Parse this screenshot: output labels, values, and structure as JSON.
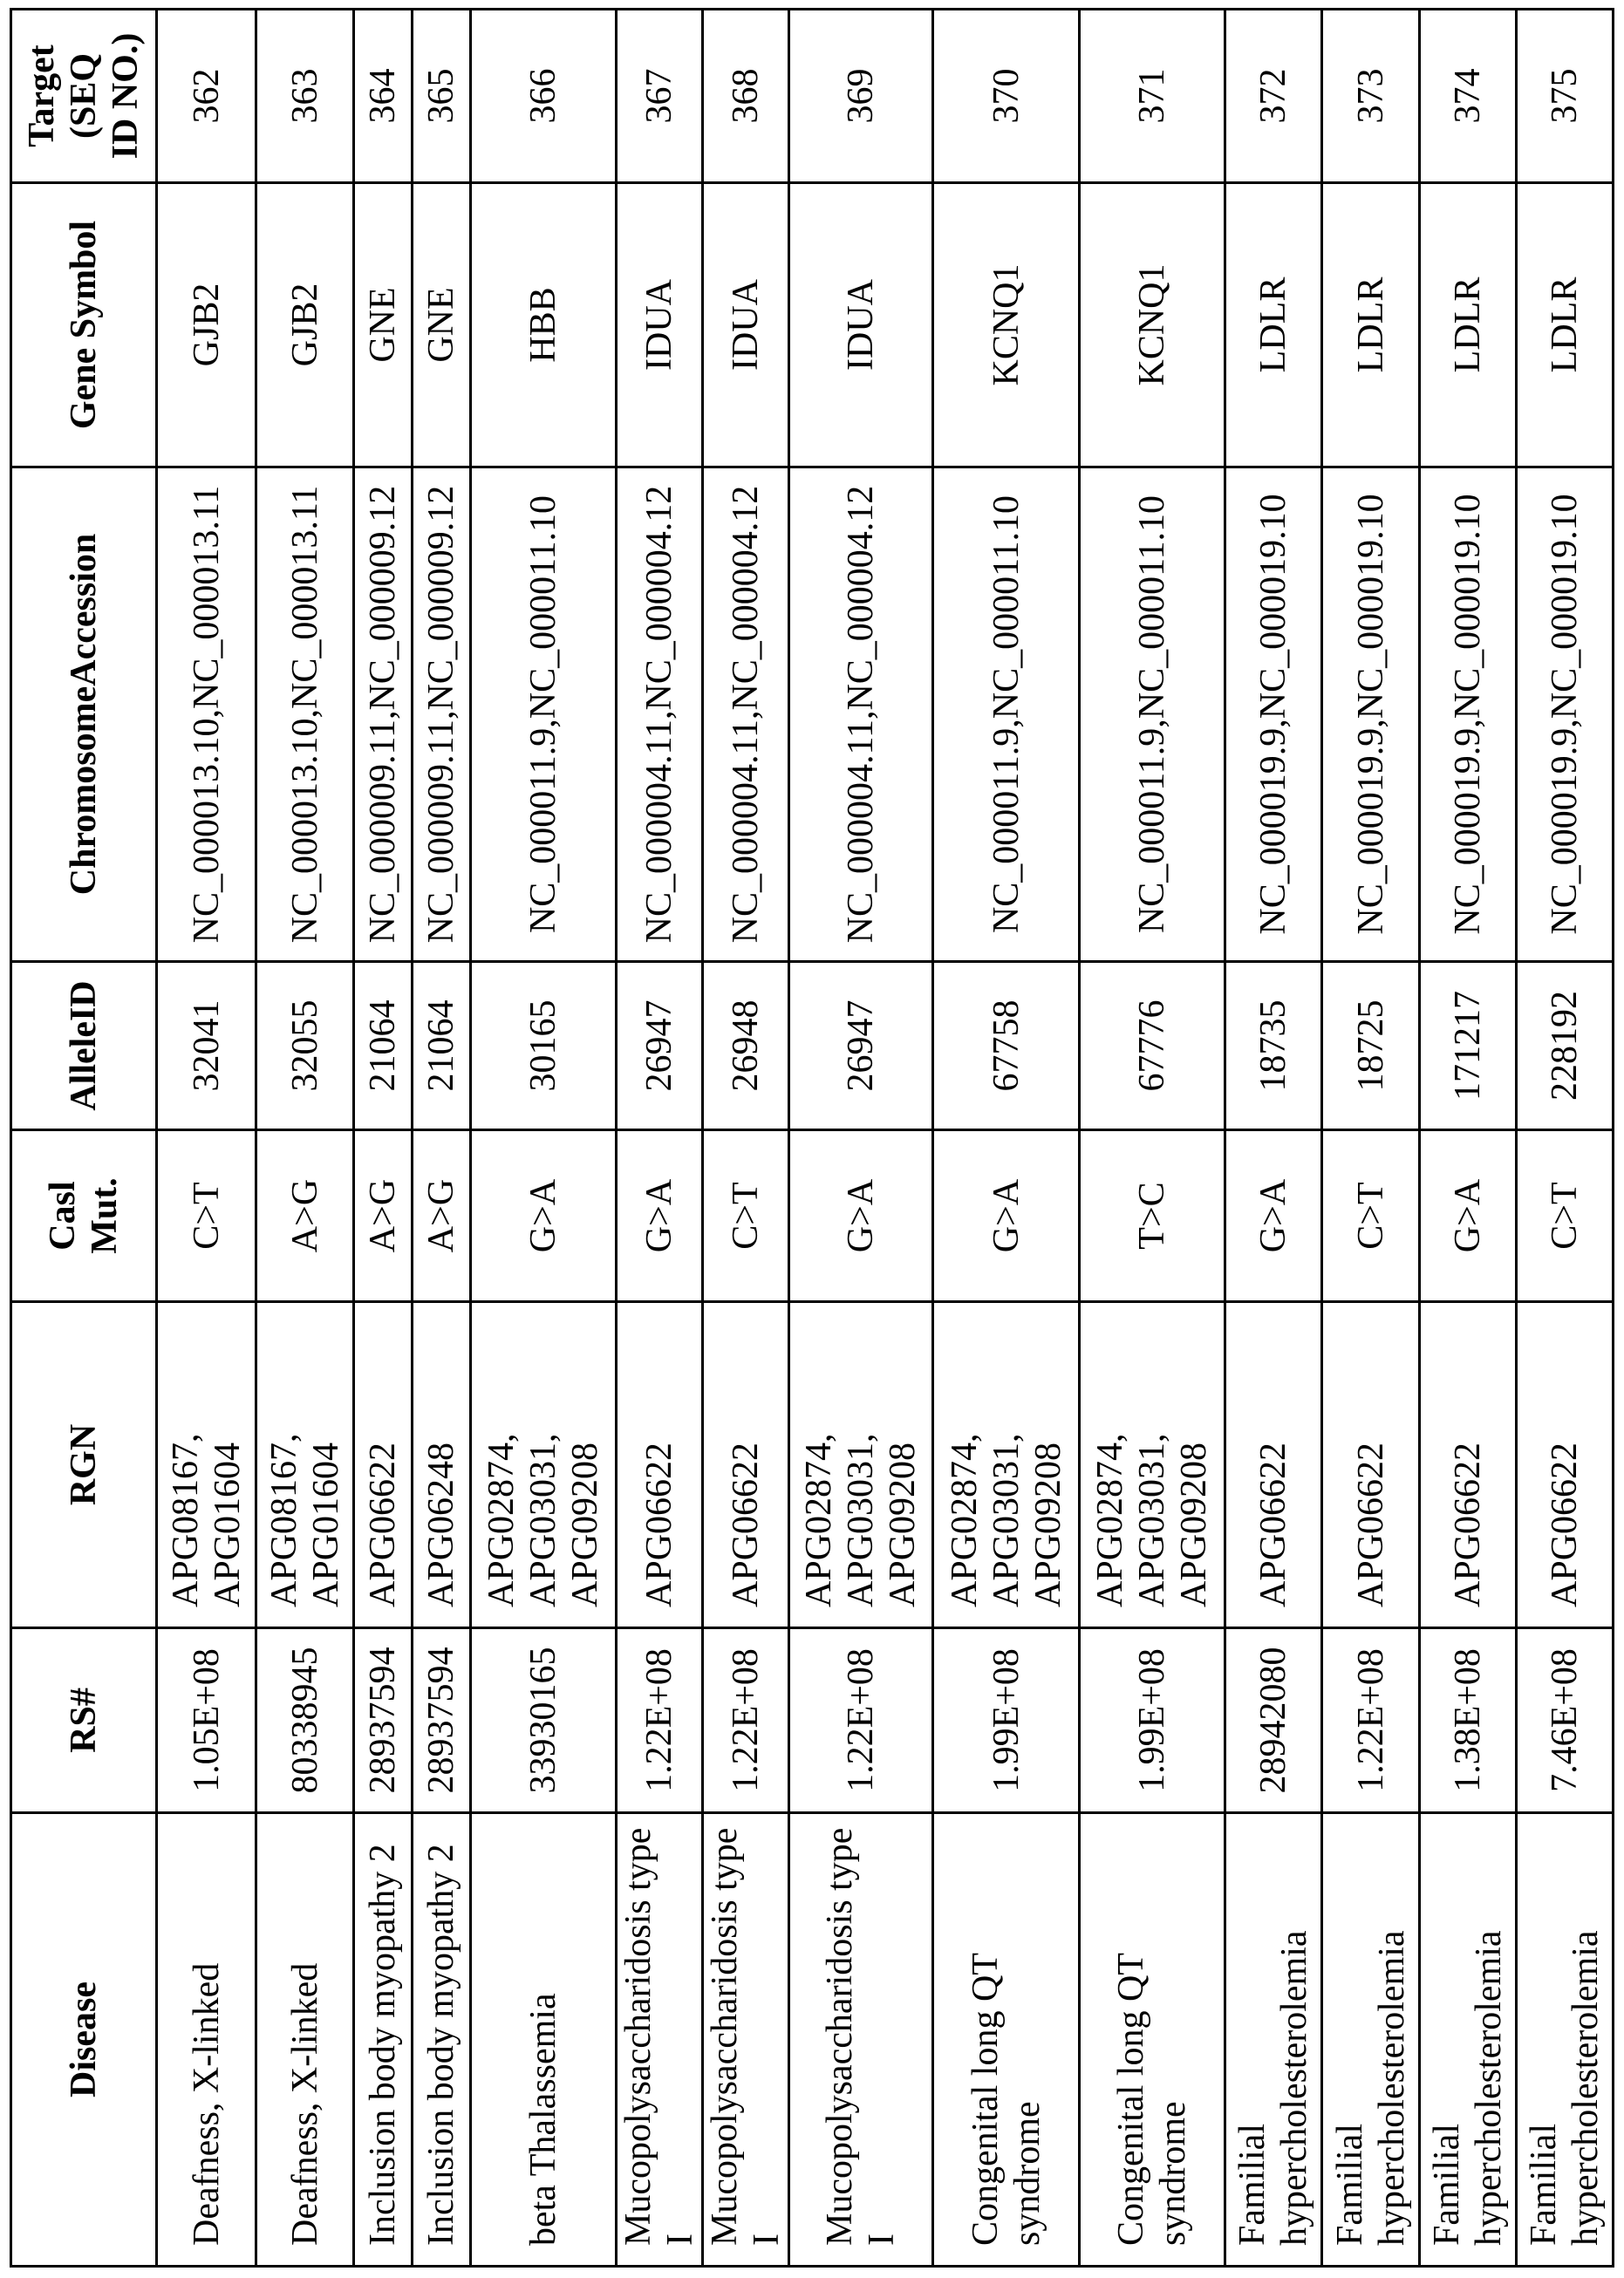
{
  "table": {
    "headers": [
      "Disease",
      "RS#",
      "RGN",
      "Casl Mut.",
      "AlleleID",
      "ChromosomeAccession",
      "Gene Symbol",
      "Target (SEQ ID NO.)"
    ],
    "rows": [
      [
        "Deafness, X-linked",
        "1.05E+08",
        "APG08167, APG01604",
        "C>T",
        "32041",
        "NC_000013.10,NC_000013.11",
        "GJB2",
        "362"
      ],
      [
        "Deafness, X-linked",
        "80338945",
        "APG08167, APG01604",
        "A>G",
        "32055",
        "NC_000013.10,NC_000013.11",
        "GJB2",
        "363"
      ],
      [
        "Inclusion body myopathy 2",
        "28937594",
        "APG06622",
        "A>G",
        "21064",
        "NC_000009.11,NC_000009.12",
        "GNE",
        "364"
      ],
      [
        "Inclusion body myopathy 2",
        "28937594",
        "APG06248",
        "A>G",
        "21064",
        "NC_000009.11,NC_000009.12",
        "GNE",
        "365"
      ],
      [
        "beta Thalassemia",
        "33930165",
        "APG02874, APG03031, APG09208",
        "G>A",
        "30165",
        "NC_000011.9,NC_000011.10",
        "HBB",
        "366"
      ],
      [
        "Mucopolysaccharidosis type I",
        "1.22E+08",
        "APG06622",
        "G>A",
        "26947",
        "NC_000004.11,NC_000004.12",
        "IDUA",
        "367"
      ],
      [
        "Mucopolysaccharidosis type I",
        "1.22E+08",
        "APG06622",
        "C>T",
        "26948",
        "NC_000004.11,NC_000004.12",
        "IDUA",
        "368"
      ],
      [
        "Mucopolysaccharidosis type I",
        "1.22E+08",
        "APG02874, APG03031, APG09208",
        "G>A",
        "26947",
        "NC_000004.11,NC_000004.12",
        "IDUA",
        "369"
      ],
      [
        "Congenital long QT syndrome",
        "1.99E+08",
        "APG02874, APG03031, APG09208",
        "G>A",
        "67758",
        "NC_000011.9,NC_000011.10",
        "KCNQ1",
        "370"
      ],
      [
        "Congenital long QT syndrome",
        "1.99E+08",
        "APG02874, APG03031, APG09208",
        "T>C",
        "67776",
        "NC_000011.9,NC_000011.10",
        "KCNQ1",
        "371"
      ],
      [
        "Familial hypercholesterolemia",
        "28942080",
        "APG06622",
        "G>A",
        "18735",
        "NC_000019.9,NC_000019.10",
        "LDLR",
        "372"
      ],
      [
        "Familial hypercholesterolemia",
        "1.22E+08",
        "APG06622",
        "C>T",
        "18725",
        "NC_000019.9,NC_000019.10",
        "LDLR",
        "373"
      ],
      [
        "Familial hypercholesterolemia",
        "1.38E+08",
        "APG06622",
        "G>A",
        "171217",
        "NC_000019.9,NC_000019.10",
        "LDLR",
        "374"
      ],
      [
        "Familial hypercholesterolemia",
        "7.46E+08",
        "APG06622",
        "C>T",
        "228192",
        "NC_000019.9,NC_000019.10",
        "LDLR",
        "375"
      ]
    ]
  }
}
